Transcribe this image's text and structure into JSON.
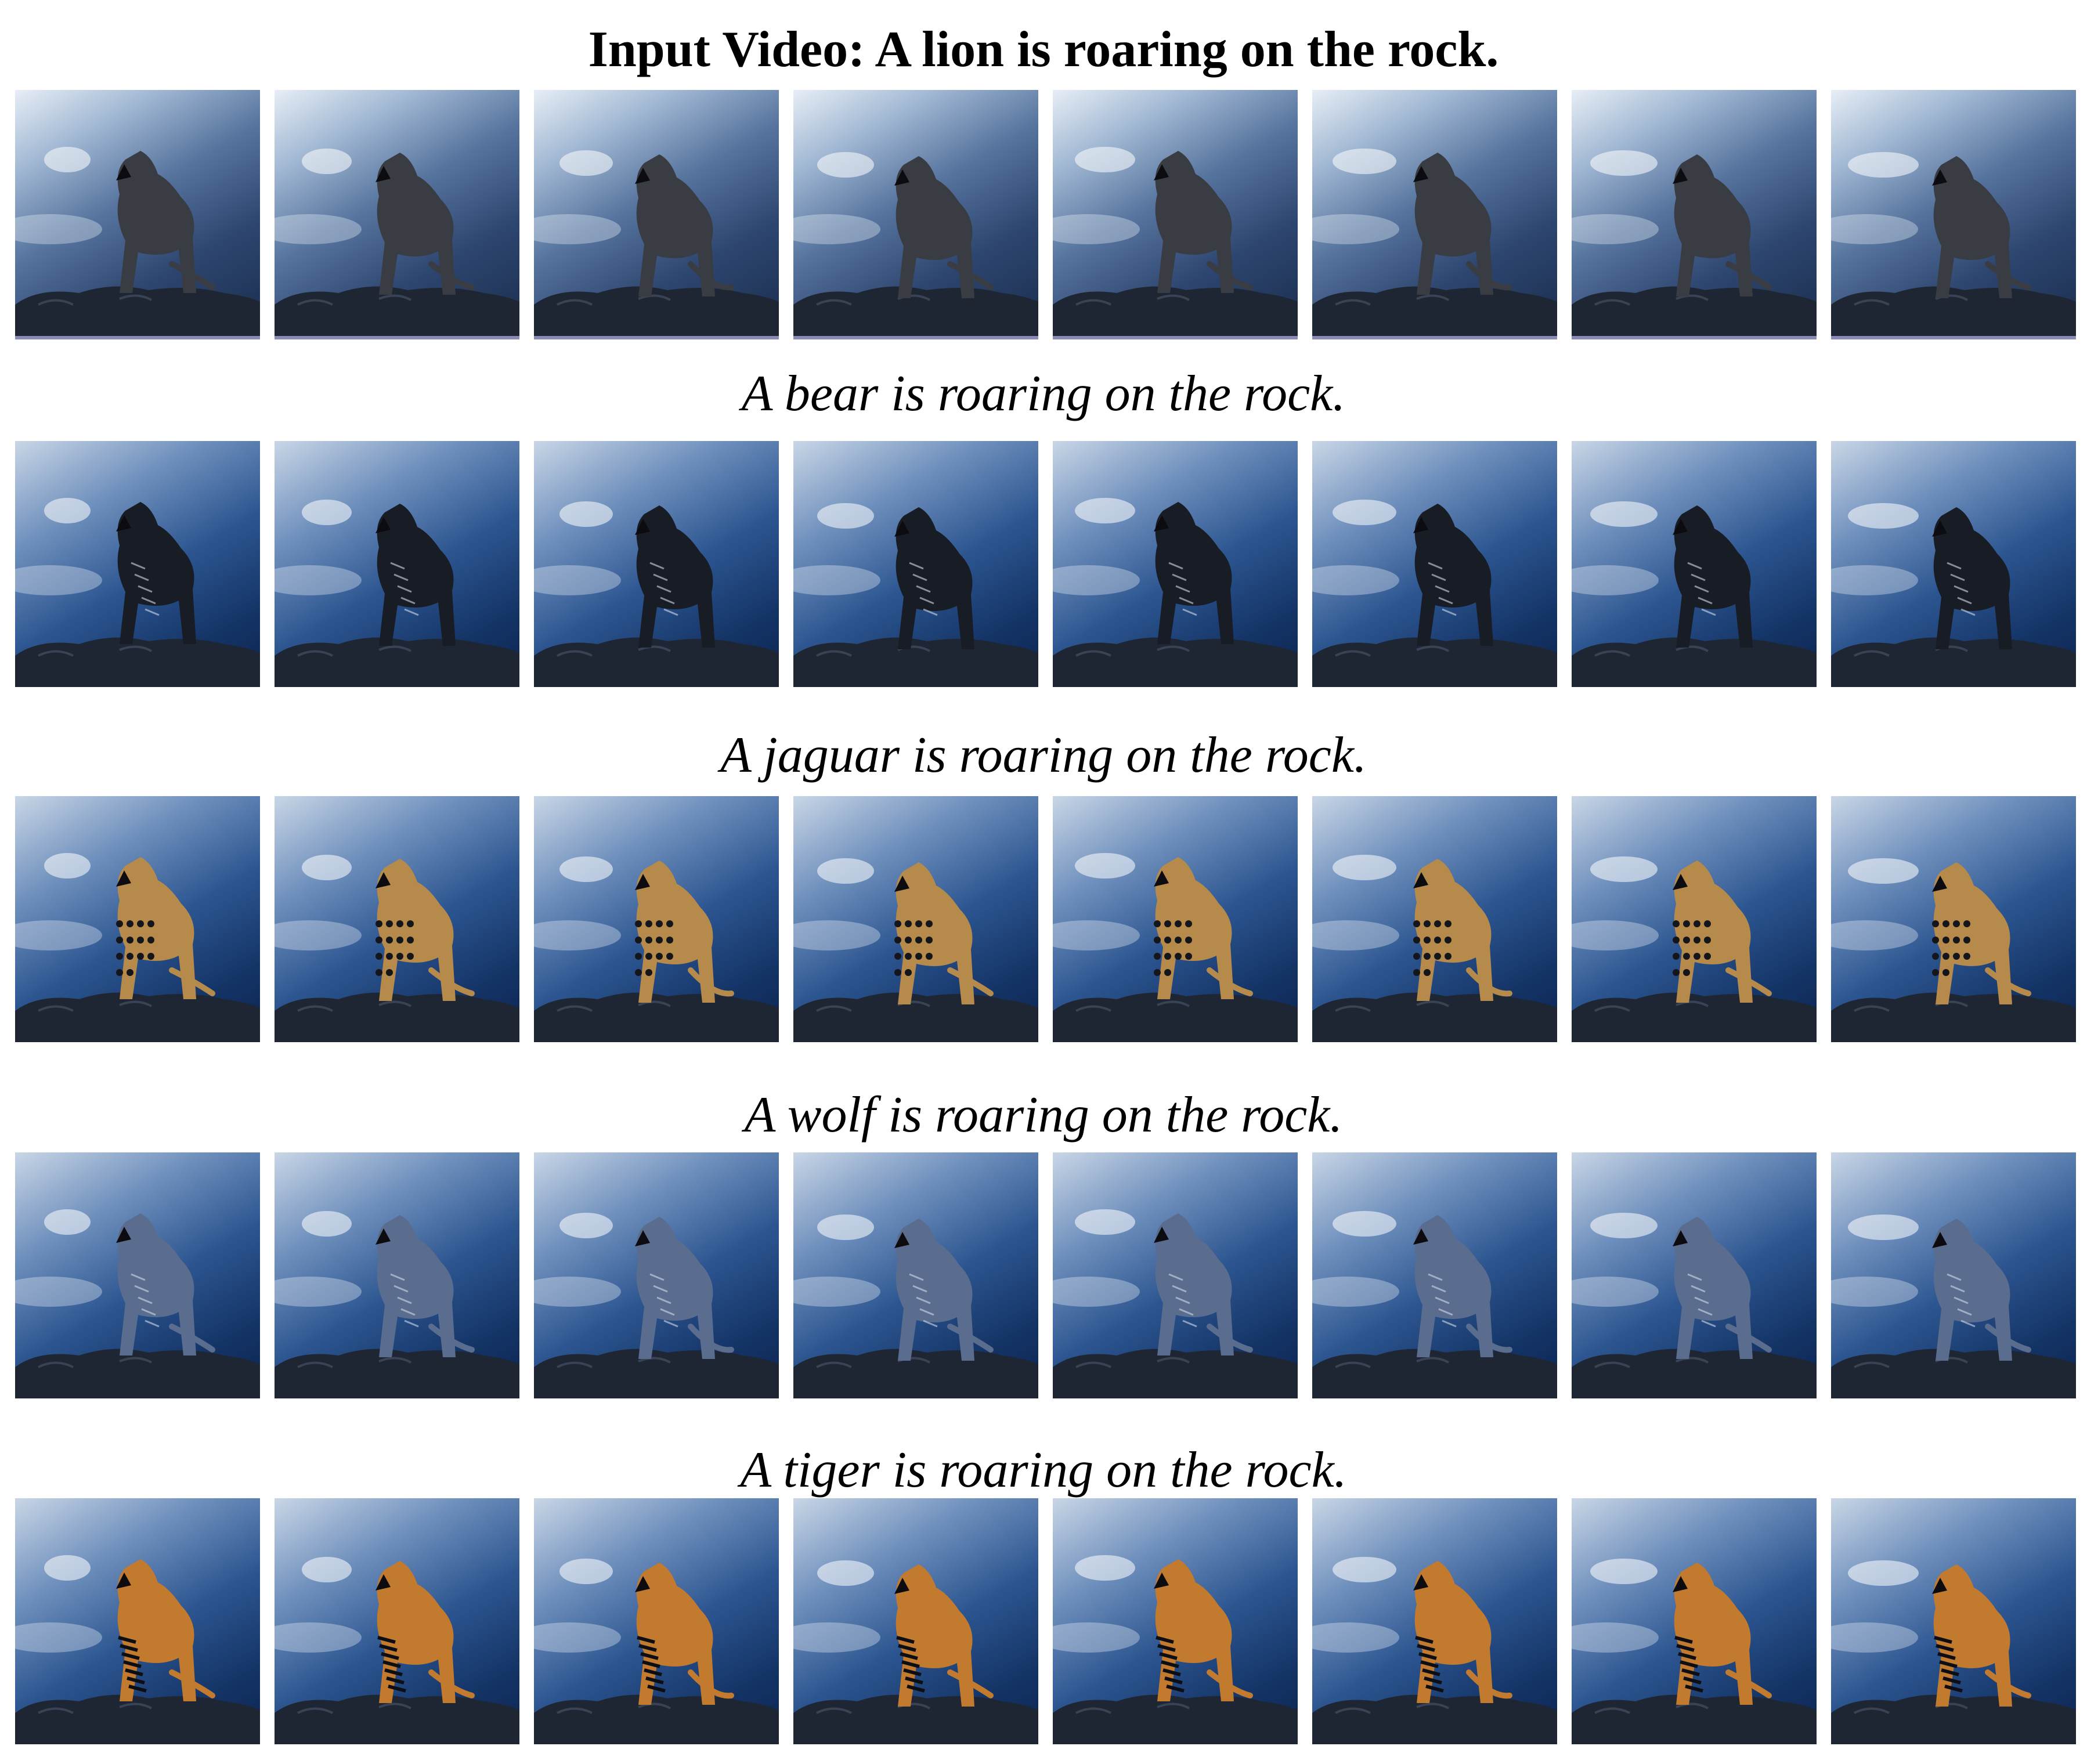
{
  "title": "Input Video: A lion is roaring on the rock.",
  "rows": [
    {
      "id": "input",
      "caption": "",
      "subject": "lion",
      "frames": 8
    },
    {
      "id": "bear",
      "caption": "A bear is roaring on the rock.",
      "subject": "bear",
      "frames": 8
    },
    {
      "id": "jaguar",
      "caption": "A jaguar is roaring on the rock.",
      "subject": "jaguar",
      "frames": 8
    },
    {
      "id": "wolf",
      "caption": "A wolf is roaring on the rock.",
      "subject": "wolf",
      "frames": 8
    },
    {
      "id": "tiger",
      "caption": "A tiger is roaring on the rock.",
      "subject": "tiger",
      "frames": 8
    }
  ],
  "colors": {
    "sky_light": "#c9d6e6",
    "sky_dark": "#0b2350",
    "rock": "#1f2633",
    "lion": "#3a3c44",
    "bear": "#181c24",
    "jaguar": "#b58a4a",
    "wolf": "#5a6d8e",
    "tiger": "#c27a2e"
  }
}
